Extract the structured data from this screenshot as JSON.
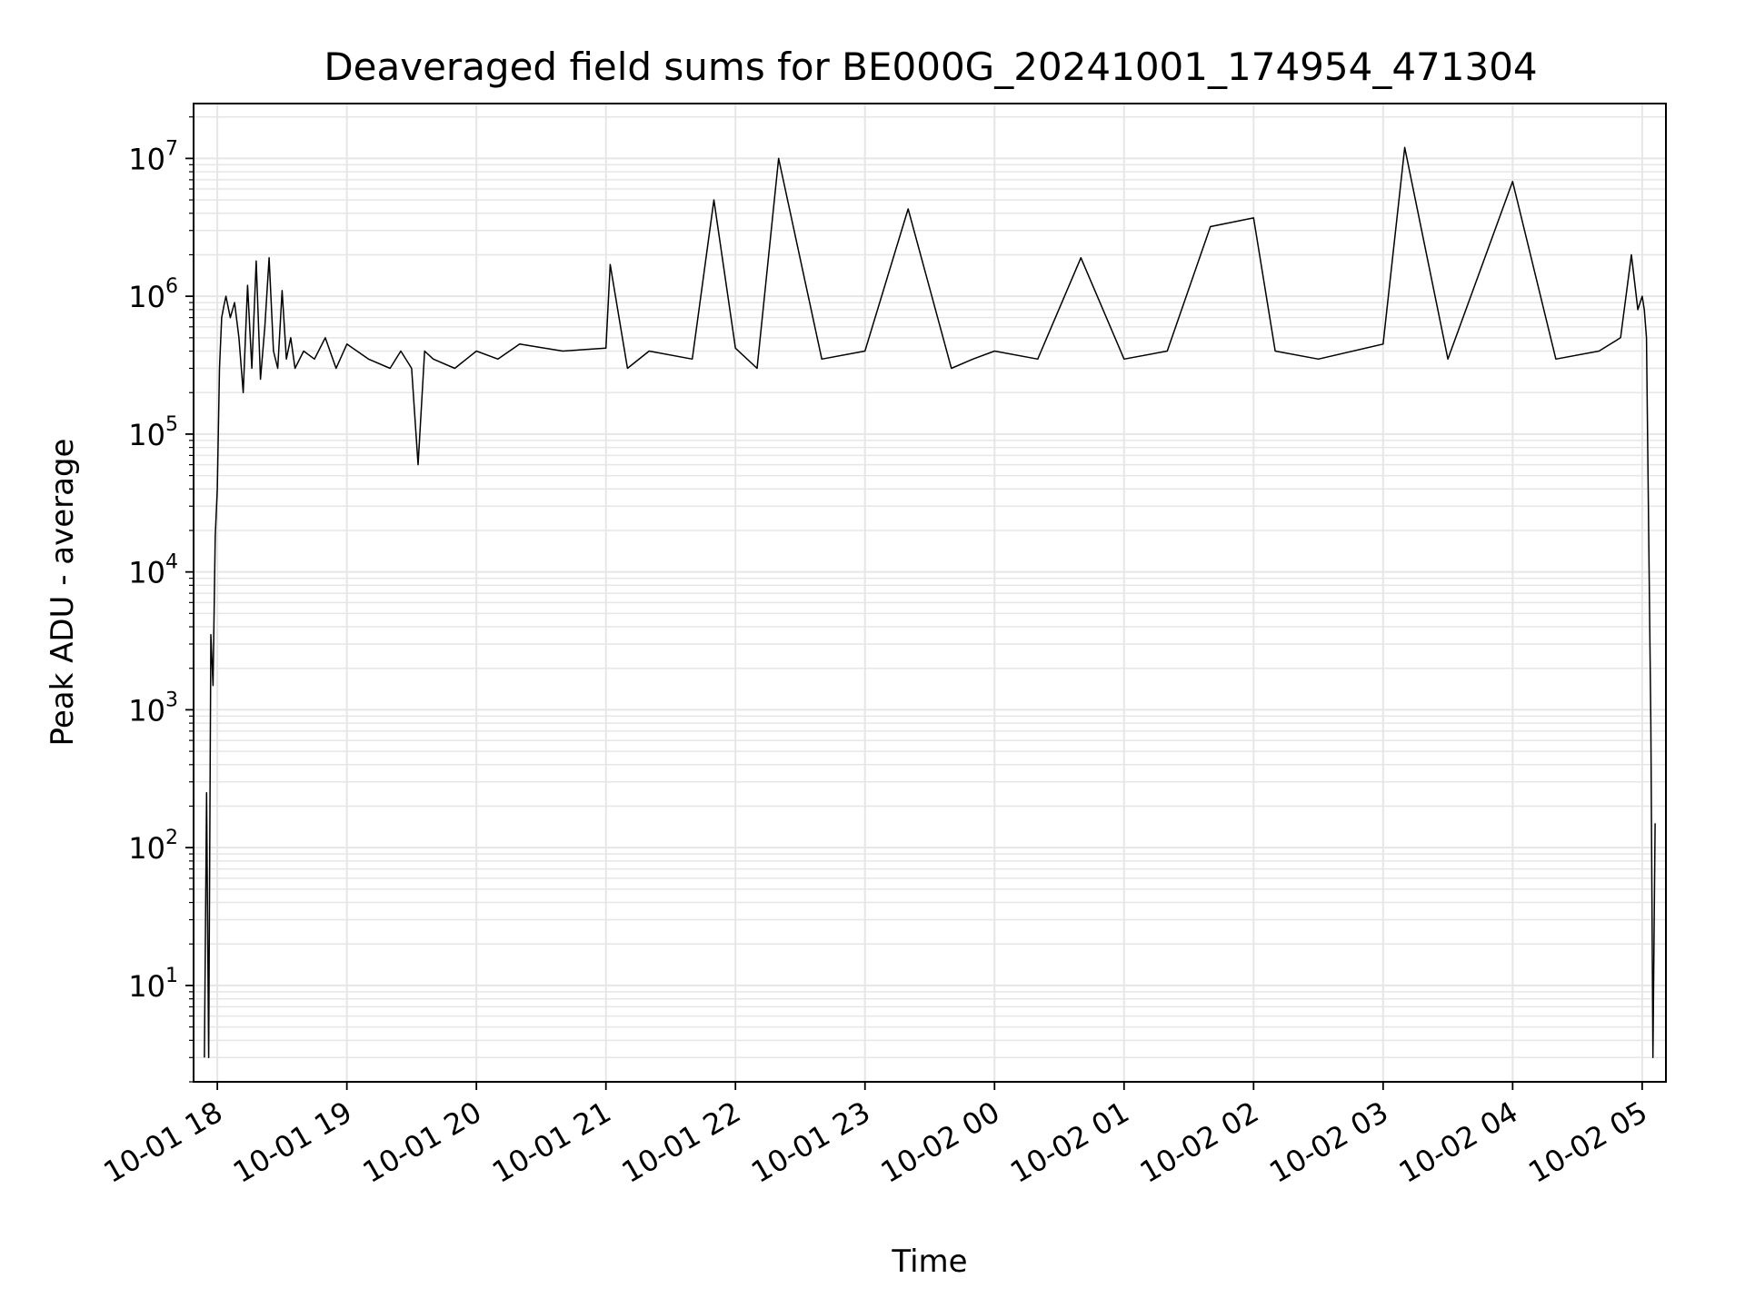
{
  "chart_data": {
    "type": "line",
    "title": "Deaveraged field sums for BE000G_20241001_174954_471304",
    "xlabel": "Time",
    "ylabel": "Peak ADU - average",
    "yscale": "log",
    "ylim": [
      2,
      25000000
    ],
    "xlim": [
      "2024-10-01 17:49",
      "2024-10-02 05:11"
    ],
    "grid": true,
    "line_color": "#000000",
    "x_ticks": [
      {
        "label": "10-01 18",
        "x": "2024-10-01 18:00"
      },
      {
        "label": "10-01 19",
        "x": "2024-10-01 19:00"
      },
      {
        "label": "10-01 20",
        "x": "2024-10-01 20:00"
      },
      {
        "label": "10-01 21",
        "x": "2024-10-01 21:00"
      },
      {
        "label": "10-01 22",
        "x": "2024-10-01 22:00"
      },
      {
        "label": "10-01 23",
        "x": "2024-10-01 23:00"
      },
      {
        "label": "10-02 00",
        "x": "2024-10-02 00:00"
      },
      {
        "label": "10-02 01",
        "x": "2024-10-02 01:00"
      },
      {
        "label": "10-02 02",
        "x": "2024-10-02 02:00"
      },
      {
        "label": "10-02 03",
        "x": "2024-10-02 03:00"
      },
      {
        "label": "10-02 04",
        "x": "2024-10-02 04:00"
      },
      {
        "label": "10-02 05",
        "x": "2024-10-02 05:00"
      }
    ],
    "y_ticks": [
      {
        "base": "10",
        "exp": "1",
        "value": 10
      },
      {
        "base": "10",
        "exp": "2",
        "value": 100
      },
      {
        "base": "10",
        "exp": "3",
        "value": 1000
      },
      {
        "base": "10",
        "exp": "4",
        "value": 10000
      },
      {
        "base": "10",
        "exp": "5",
        "value": 100000
      },
      {
        "base": "10",
        "exp": "6",
        "value": 1000000
      },
      {
        "base": "10",
        "exp": "7",
        "value": 10000000
      }
    ],
    "series": [
      {
        "x": [
          "2024-10-01 17:54",
          "2024-10-01 17:55",
          "2024-10-01 17:56",
          "2024-10-01 17:57",
          "2024-10-01 17:58",
          "2024-10-01 17:59",
          "2024-10-01 18:00",
          "2024-10-01 18:01",
          "2024-10-01 18:02",
          "2024-10-01 18:03",
          "2024-10-01 18:04",
          "2024-10-01 18:06",
          "2024-10-01 18:08",
          "2024-10-01 18:10",
          "2024-10-01 18:12",
          "2024-10-01 18:14",
          "2024-10-01 18:16",
          "2024-10-01 18:18",
          "2024-10-01 18:20",
          "2024-10-01 18:22",
          "2024-10-01 18:24",
          "2024-10-01 18:26",
          "2024-10-01 18:28",
          "2024-10-01 18:30",
          "2024-10-01 18:32",
          "2024-10-01 18:34",
          "2024-10-01 18:36",
          "2024-10-01 18:40",
          "2024-10-01 18:45",
          "2024-10-01 18:50",
          "2024-10-01 18:55",
          "2024-10-01 19:00",
          "2024-10-01 19:10",
          "2024-10-01 19:20",
          "2024-10-01 19:25",
          "2024-10-01 19:30",
          "2024-10-01 19:33",
          "2024-10-01 19:36",
          "2024-10-01 19:40",
          "2024-10-01 19:50",
          "2024-10-01 20:00",
          "2024-10-01 20:10",
          "2024-10-01 20:20",
          "2024-10-01 20:40",
          "2024-10-01 21:00",
          "2024-10-01 21:02",
          "2024-10-01 21:10",
          "2024-10-01 21:20",
          "2024-10-01 21:40",
          "2024-10-01 21:50",
          "2024-10-01 22:00",
          "2024-10-01 22:10",
          "2024-10-01 22:20",
          "2024-10-01 22:40",
          "2024-10-01 23:00",
          "2024-10-01 23:20",
          "2024-10-01 23:40",
          "2024-10-01 23:50",
          "2024-10-02 00:00",
          "2024-10-02 00:20",
          "2024-10-02 00:40",
          "2024-10-02 01:00",
          "2024-10-02 01:20",
          "2024-10-02 01:40",
          "2024-10-02 02:00",
          "2024-10-02 02:10",
          "2024-10-02 02:30",
          "2024-10-02 03:00",
          "2024-10-02 03:10",
          "2024-10-02 03:30",
          "2024-10-02 04:00",
          "2024-10-02 04:20",
          "2024-10-02 04:40",
          "2024-10-02 04:50",
          "2024-10-02 04:55",
          "2024-10-02 04:58",
          "2024-10-02 05:00",
          "2024-10-02 05:01",
          "2024-10-02 05:02",
          "2024-10-02 05:03",
          "2024-10-02 05:04",
          "2024-10-02 05:05",
          "2024-10-02 05:06"
        ],
        "y": [
          3,
          250,
          3,
          3500,
          1500,
          18000,
          40000,
          300000,
          700000,
          850000,
          1000000,
          700000,
          900000,
          500000,
          200000,
          1200000,
          300000,
          1800000,
          250000,
          600000,
          1900000,
          400000,
          300000,
          1100000,
          350000,
          500000,
          300000,
          400000,
          350000,
          500000,
          300000,
          450000,
          350000,
          300000,
          400000,
          300000,
          60000,
          400000,
          350000,
          300000,
          400000,
          350000,
          450000,
          400000,
          420000,
          1700000,
          300000,
          400000,
          350000,
          5000000,
          420000,
          300000,
          10000000,
          350000,
          400000,
          4300000,
          300000,
          350000,
          400000,
          350000,
          1900000,
          350000,
          400000,
          3200000,
          3700000,
          400000,
          350000,
          450000,
          12000000,
          350000,
          6800000,
          350000,
          400000,
          500000,
          2000000,
          800000,
          1000000,
          800000,
          500000,
          20000,
          800,
          3,
          150
        ]
      }
    ]
  }
}
